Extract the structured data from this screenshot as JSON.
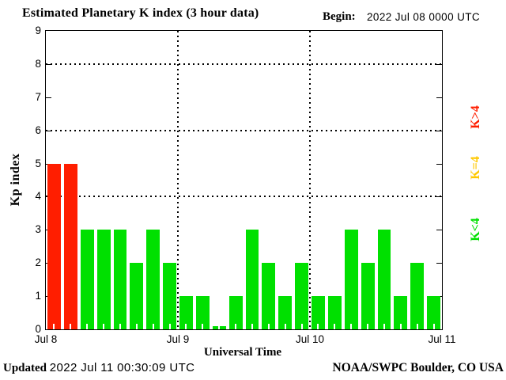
{
  "title": "Estimated Planetary K index (3 hour data)",
  "begin": {
    "label": "Begin:",
    "value": "2022 Jul 08 0000 UTC"
  },
  "footer": {
    "updated_label": "Updated",
    "updated_value": "2022 Jul 11 00:30:09 UTC",
    "source": "NOAA/SWPC Boulder, CO USA"
  },
  "legend": [
    {
      "label": "K>4",
      "color": "#ff1e00"
    },
    {
      "label": "K=4",
      "color": "#ffc800"
    },
    {
      "label": "K<4",
      "color": "#00e000"
    }
  ],
  "chart_data": {
    "type": "bar",
    "title": "Estimated Planetary K index (3 hour data)",
    "xlabel": "Universal Time",
    "ylabel": "Kp index",
    "begin": "2022 Jul 08 0000 UTC",
    "bin_hours": 3,
    "ylim": [
      0,
      9
    ],
    "yticks": [
      0,
      1,
      2,
      3,
      4,
      5,
      6,
      7,
      8,
      9
    ],
    "grid_y": [
      4,
      6,
      8
    ],
    "day_labels": [
      "Jul 8",
      "Jul 9",
      "Jul 10",
      "Jul 11"
    ],
    "values": [
      5,
      5,
      3,
      3,
      3,
      2,
      3,
      2,
      1,
      1,
      0,
      1,
      3,
      2,
      1,
      2,
      1,
      1,
      3,
      2,
      3,
      1,
      2,
      1
    ],
    "color_rule": {
      "gt4": "#ff1e00",
      "eq4": "#ffc800",
      "lt4": "#00e000"
    },
    "legend_position": "right",
    "grid": "dotted"
  }
}
